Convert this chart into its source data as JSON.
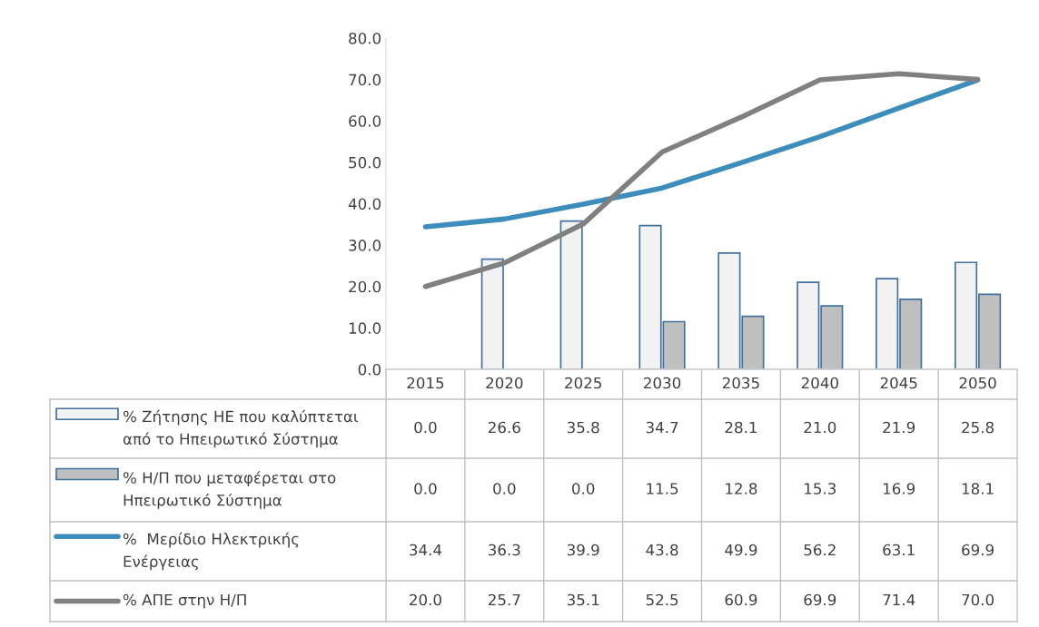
{
  "chart_data": {
    "type": "bar",
    "categories": [
      "2015",
      "2020",
      "2025",
      "2030",
      "2035",
      "2040",
      "2045",
      "2050"
    ],
    "series": [
      {
        "name": "% Ζήτησης ΗΕ που καλύπτεται\nαπό το Ηπειρωτικό Σύστημα",
        "color": "#f2f2f2",
        "values": [
          0.0,
          26.6,
          35.8,
          34.7,
          28.1,
          21.0,
          21.9,
          25.8
        ],
        "value_labels": [
          "0.0",
          "26.6",
          "35.8",
          "34.7",
          "28.1",
          "21.0",
          "21.9",
          "25.8"
        ]
      },
      {
        "name": "% Η/Π που μεταφέρεται στο\nΗπειρωτικό Σύστημα",
        "color": "#bfbfbf",
        "values": [
          0.0,
          0.0,
          0.0,
          11.5,
          12.8,
          15.3,
          16.9,
          18.1
        ],
        "value_labels": [
          "0.0",
          "0.0",
          "0.0",
          "11.5",
          "12.8",
          "15.3",
          "16.9",
          "18.1"
        ]
      },
      {
        "name": "%  Μερίδιο Ηλεκτρικής\nΕνέργειας",
        "type": "line",
        "color": "#3c8dbc",
        "values": [
          34.4,
          36.3,
          39.9,
          43.8,
          49.9,
          56.2,
          63.1,
          69.9
        ],
        "value_labels": [
          "34.4",
          "36.3",
          "39.9",
          "43.8",
          "49.9",
          "56.2",
          "63.1",
          "69.9"
        ]
      },
      {
        "name": "% ΑΠΕ στην Η/Π",
        "type": "line",
        "color": "#808080",
        "values": [
          20.0,
          25.7,
          35.1,
          52.5,
          60.9,
          69.9,
          71.4,
          70.0
        ],
        "value_labels": [
          "20.0",
          "25.7",
          "35.1",
          "52.5",
          "60.9",
          "69.9",
          "71.4",
          "70.0"
        ]
      }
    ],
    "ylim": [
      0,
      80
    ],
    "yticks": [
      {
        "value": 0,
        "label": "0.0"
      },
      {
        "value": 10,
        "label": "10.0"
      },
      {
        "value": 20,
        "label": "20.0"
      },
      {
        "value": 30,
        "label": "30.0"
      },
      {
        "value": 40,
        "label": "40.0"
      },
      {
        "value": 50,
        "label": "50.0"
      },
      {
        "value": 60,
        "label": "60.0"
      },
      {
        "value": 70,
        "label": "70.0"
      },
      {
        "value": 80,
        "label": "80.0"
      }
    ],
    "grid": false,
    "legend": "left",
    "marker": "none",
    "line_style": "solid"
  }
}
